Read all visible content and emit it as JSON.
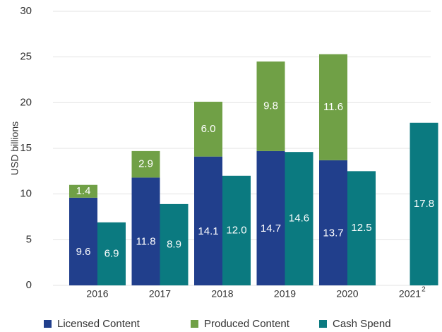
{
  "chart_data": {
    "type": "stacked_grouped_bar",
    "y_label": "USD billions",
    "categories": [
      "2016",
      "2017",
      "2018",
      "2019",
      "2020",
      "2021"
    ],
    "category_footnotes": [
      null,
      null,
      null,
      null,
      null,
      "2"
    ],
    "series": [
      {
        "name": "Licensed Content",
        "color": "#213f8c",
        "stack": "content",
        "values": [
          9.6,
          11.8,
          14.1,
          14.7,
          13.7,
          null
        ],
        "value_labels": [
          "9.6",
          "11.8",
          "14.1",
          "14.7",
          "13.7",
          null
        ]
      },
      {
        "name": "Produced Content",
        "color": "#70a046",
        "stack": "content",
        "values": [
          1.4,
          2.9,
          6.0,
          9.8,
          11.6,
          null
        ],
        "value_labels": [
          "1.4",
          "2.9",
          "6.0",
          "9.8",
          "11.6",
          null
        ]
      },
      {
        "name": "Cash Spend",
        "color": "#0b7a80",
        "stack": "cash",
        "values": [
          6.9,
          8.9,
          12.0,
          14.6,
          12.5,
          17.8
        ],
        "value_labels": [
          "6.9",
          "8.9",
          "12.0",
          "14.6",
          "12.5",
          "17.8"
        ]
      }
    ],
    "ylim": [
      0,
      30
    ],
    "yticks": [
      0,
      5,
      10,
      15,
      20,
      25,
      30
    ],
    "grid": true
  }
}
